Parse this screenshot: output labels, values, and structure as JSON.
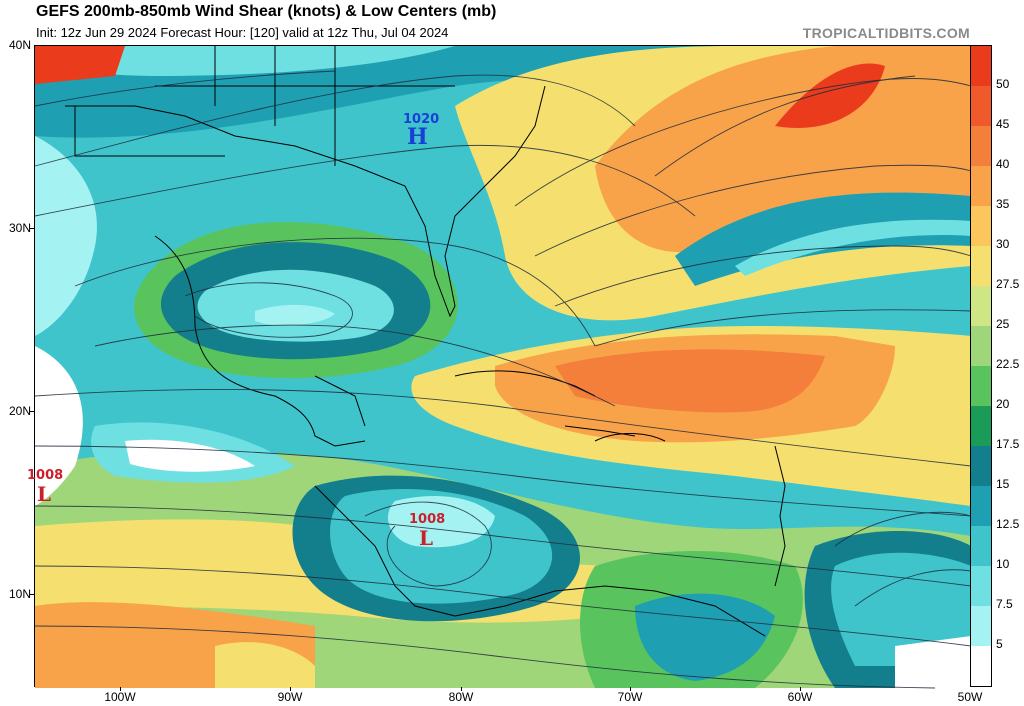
{
  "header": {
    "title": "GEFS 200mb-850mb Wind Shear (knots) & Low Centers (mb)",
    "subtitle": "Init: 12z Jun 29 2024   Forecast Hour: [120]   valid at 12z Thu, Jul 04 2024",
    "brand": "TROPICALTIDBITS.COM"
  },
  "axes": {
    "lat_labels": [
      "40N",
      "30N",
      "20N",
      "10N"
    ],
    "lon_labels": [
      "100W",
      "90W",
      "80W",
      "70W",
      "60W",
      "50W"
    ]
  },
  "pressure_centers": [
    {
      "type": "H",
      "value": "1020",
      "color": "#1a3fd6"
    },
    {
      "type": "L",
      "value": "1008",
      "color": "#cc1f2a"
    },
    {
      "type": "L",
      "value": "1008",
      "color": "#cc1f2a"
    }
  ],
  "colorbar": {
    "labels": [
      "50",
      "45",
      "40",
      "35",
      "30",
      "27.5",
      "25",
      "22.5",
      "20",
      "17.5",
      "15",
      "12.5",
      "10",
      "7.5",
      "5"
    ],
    "colors": [
      "#ea3b1c",
      "#f05a2a",
      "#f47f3a",
      "#f8a24a",
      "#fbc75c",
      "#f5e06f",
      "#cfe685",
      "#9fd67a",
      "#59c45e",
      "#1a9b58",
      "#137e8c",
      "#1f9fb2",
      "#3fc4cc",
      "#6ee0e2",
      "#a5f2f2",
      "#ffffff"
    ]
  }
}
